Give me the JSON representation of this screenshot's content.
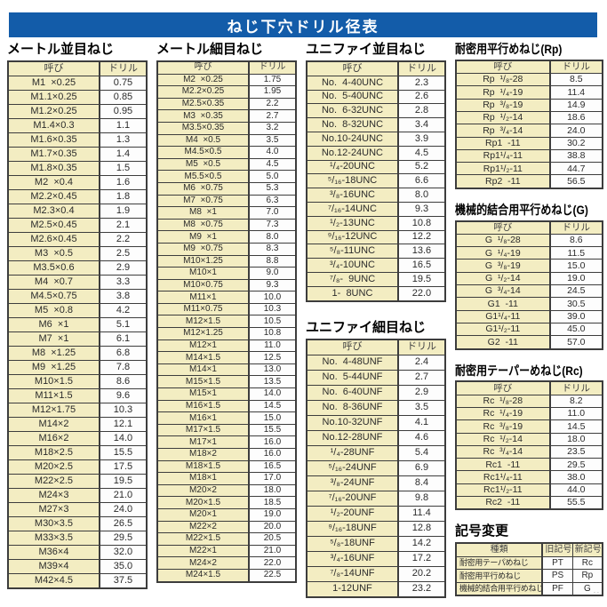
{
  "title": "ねじ下穴ドリル径表",
  "colors": {
    "title_bg": "#135ca9",
    "cell_cream": "#f3edc2",
    "border": "#3d3d3d"
  },
  "col_headers": {
    "name": "呼び",
    "drill": "ドリル"
  },
  "tables": {
    "metric_coarse": {
      "title": "メートル並目ねじ",
      "rows": [
        [
          "M1  ×0.25",
          "0.75"
        ],
        [
          "M1.1×0.25",
          "0.85"
        ],
        [
          "M1.2×0.25",
          "0.95"
        ],
        [
          "M1.4×0.3",
          "1.1"
        ],
        [
          "M1.6×0.35",
          "1.3"
        ],
        [
          "M1.7×0.35",
          "1.4"
        ],
        [
          "M1.8×0.35",
          "1.5"
        ],
        [
          "M2  ×0.4",
          "1.6"
        ],
        [
          "M2.2×0.45",
          "1.8"
        ],
        [
          "M2.3×0.4",
          "1.9"
        ],
        [
          "M2.5×0.45",
          "2.1"
        ],
        [
          "M2.6×0.45",
          "2.2"
        ],
        [
          "M3  ×0.5",
          "2.5"
        ],
        [
          "M3.5×0.6",
          "2.9"
        ],
        [
          "M4  ×0.7",
          "3.3"
        ],
        [
          "M4.5×0.75",
          "3.8"
        ],
        [
          "M5  ×0.8",
          "4.2"
        ],
        [
          "M6  ×1",
          "5.1"
        ],
        [
          "M7  ×1",
          "6.1"
        ],
        [
          "M8  ×1.25",
          "6.8"
        ],
        [
          "M9  ×1.25",
          "7.8"
        ],
        [
          "M10×1.5",
          "8.6"
        ],
        [
          "M11×1.5",
          "9.6"
        ],
        [
          "M12×1.75",
          "10.3"
        ],
        [
          "M14×2",
          "12.1"
        ],
        [
          "M16×2",
          "14.0"
        ],
        [
          "M18×2.5",
          "15.5"
        ],
        [
          "M20×2.5",
          "17.5"
        ],
        [
          "M22×2.5",
          "19.5"
        ],
        [
          "M24×3",
          "21.0"
        ],
        [
          "M27×3",
          "24.0"
        ],
        [
          "M30×3.5",
          "26.5"
        ],
        [
          "M33×3.5",
          "29.5"
        ],
        [
          "M36×4",
          "32.0"
        ],
        [
          "M39×4",
          "35.0"
        ],
        [
          "M42×4.5",
          "37.5"
        ]
      ]
    },
    "metric_fine": {
      "title": "メートル細目ねじ",
      "rows": [
        [
          "M2  ×0.25",
          "1.75"
        ],
        [
          "M2.2×0.25",
          "1.95"
        ],
        [
          "M2.5×0.35",
          "2.2"
        ],
        [
          "M3  ×0.35",
          "2.7"
        ],
        [
          "M3.5×0.35",
          "3.2"
        ],
        [
          "M4  ×0.5",
          "3.5"
        ],
        [
          "M4.5×0.5",
          "4.0"
        ],
        [
          "M5  ×0.5",
          "4.5"
        ],
        [
          "M5.5×0.5",
          "5.0"
        ],
        [
          "M6  ×0.75",
          "5.3"
        ],
        [
          "M7  ×0.75",
          "6.3"
        ],
        [
          "M8  ×1",
          "7.0"
        ],
        [
          "M8  ×0.75",
          "7.3"
        ],
        [
          "M9  ×1",
          "8.0"
        ],
        [
          "M9  ×0.75",
          "8.3"
        ],
        [
          "M10×1.25",
          "8.8"
        ],
        [
          "M10×1",
          "9.0"
        ],
        [
          "M10×0.75",
          "9.3"
        ],
        [
          "M11×1",
          "10.0"
        ],
        [
          "M11×0.75",
          "10.3"
        ],
        [
          "M12×1.5",
          "10.5"
        ],
        [
          "M12×1.25",
          "10.8"
        ],
        [
          "M12×1",
          "11.0"
        ],
        [
          "M14×1.5",
          "12.5"
        ],
        [
          "M14×1",
          "13.0"
        ],
        [
          "M15×1.5",
          "13.5"
        ],
        [
          "M15×1",
          "14.0"
        ],
        [
          "M16×1.5",
          "14.5"
        ],
        [
          "M16×1",
          "15.0"
        ],
        [
          "M17×1.5",
          "15.5"
        ],
        [
          "M17×1",
          "16.0"
        ],
        [
          "M18×2",
          "16.0"
        ],
        [
          "M18×1.5",
          "16.5"
        ],
        [
          "M18×1",
          "17.0"
        ],
        [
          "M20×2",
          "18.0"
        ],
        [
          "M20×1.5",
          "18.5"
        ],
        [
          "M20×1",
          "19.0"
        ],
        [
          "M22×2",
          "20.0"
        ],
        [
          "M22×1.5",
          "20.5"
        ],
        [
          "M22×1",
          "21.0"
        ],
        [
          "M24×2",
          "22.0"
        ],
        [
          "M24×1.5",
          "22.5"
        ]
      ]
    },
    "unified_coarse": {
      "title": "ユニファイ並目ねじ",
      "rows": [
        [
          "No.  4-40UNC",
          "2.3"
        ],
        [
          "No.  5-40UNC",
          "2.6"
        ],
        [
          "No.  6-32UNC",
          "2.8"
        ],
        [
          "No.  8-32UNC",
          "3.4"
        ],
        [
          "No.10-24UNC",
          "3.9"
        ],
        [
          "No.12-24UNC",
          "4.5"
        ],
        [
          "¹/₄-20UNC",
          "5.2"
        ],
        [
          "⁵/₁₆-18UNC",
          "6.6"
        ],
        [
          "³/₈-16UNC",
          "8.0"
        ],
        [
          "⁷/₁₆-14UNC",
          "9.3"
        ],
        [
          "¹/₂-13UNC",
          "10.8"
        ],
        [
          "⁹/₁₆-12UNC",
          "12.2"
        ],
        [
          "⁵/₈-11UNC",
          "13.6"
        ],
        [
          "³/₄-10UNC",
          "16.5"
        ],
        [
          "⁷/₈-  9UNC",
          "19.5"
        ],
        [
          "1-  8UNC",
          "22.0"
        ]
      ]
    },
    "unified_fine": {
      "title": "ユニファイ細目ねじ",
      "rows": [
        [
          "No.  4-48UNF",
          "2.4"
        ],
        [
          "No.  5-44UNF",
          "2.7"
        ],
        [
          "No.  6-40UNF",
          "2.9"
        ],
        [
          "No.  8-36UNF",
          "3.5"
        ],
        [
          "No.10-32UNF",
          "4.1"
        ],
        [
          "No.12-28UNF",
          "4.6"
        ],
        [
          "¹/₄-28UNF",
          "5.4"
        ],
        [
          "⁵/₁₆-24UNF",
          "6.9"
        ],
        [
          "³/₈-24UNF",
          "8.4"
        ],
        [
          "⁷/₁₆-20UNF",
          "9.8"
        ],
        [
          "¹/₂-20UNF",
          "11.4"
        ],
        [
          "⁹/₁₆-18UNF",
          "12.8"
        ],
        [
          "⁵/₈-18UNF",
          "14.2"
        ],
        [
          "³/₄-16UNF",
          "17.2"
        ],
        [
          "⁷/₈-14UNF",
          "20.2"
        ],
        [
          "1-12UNF",
          "23.2"
        ]
      ]
    },
    "rp": {
      "title": "耐密用平行めねじ(Rp)",
      "rows": [
        [
          "Rp  ¹/₈-28",
          "8.5"
        ],
        [
          "Rp  ¹/₄-19",
          "11.4"
        ],
        [
          "Rp  ³/₈-19",
          "14.9"
        ],
        [
          "Rp  ¹/₂-14",
          "18.6"
        ],
        [
          "Rp  ³/₄-14",
          "24.0"
        ],
        [
          "Rp1  -11",
          "30.2"
        ],
        [
          "Rp1¹/₄-11",
          "38.8"
        ],
        [
          "Rp1¹/₂-11",
          "44.7"
        ],
        [
          "Rp2  -11",
          "56.5"
        ]
      ]
    },
    "g": {
      "title": "機械的結合用平行めねじ(G)",
      "rows": [
        [
          "G  ¹/₈-28",
          "8.6"
        ],
        [
          "G  ¹/₄-19",
          "11.5"
        ],
        [
          "G  ³/₈-19",
          "15.0"
        ],
        [
          "G  ¹/₂-14",
          "19.0"
        ],
        [
          "G  ³/₄-14",
          "24.5"
        ],
        [
          "G1  -11",
          "30.5"
        ],
        [
          "G1¹/₄-11",
          "39.0"
        ],
        [
          "G1¹/₂-11",
          "45.0"
        ],
        [
          "G2  -11",
          "57.0"
        ]
      ]
    },
    "rc": {
      "title": "耐密用テーパーめねじ(Rc)",
      "rows": [
        [
          "Rc  ¹/₈-28",
          "8.2"
        ],
        [
          "Rc  ¹/₄-19",
          "11.0"
        ],
        [
          "Rc  ³/₈-19",
          "14.5"
        ],
        [
          "Rc  ¹/₂-14",
          "18.0"
        ],
        [
          "Rc  ³/₄-14",
          "23.5"
        ],
        [
          "Rc1  -11",
          "29.5"
        ],
        [
          "Rc1¹/₄-11",
          "38.0"
        ],
        [
          "Rc1¹/₂-11",
          "44.0"
        ],
        [
          "Rc2  -11",
          "55.5"
        ]
      ]
    }
  },
  "symbol_change": {
    "title": "記号変更",
    "headers": [
      "種類",
      "旧記号",
      "新記号"
    ],
    "rows": [
      [
        "耐密用テーパめねじ",
        "PT",
        "Rc"
      ],
      [
        "耐密用平行めねじ",
        "PS",
        "Rp"
      ],
      [
        "機械的結合用平行めねじ",
        "PF",
        "G"
      ]
    ]
  },
  "corner_mark": "--"
}
